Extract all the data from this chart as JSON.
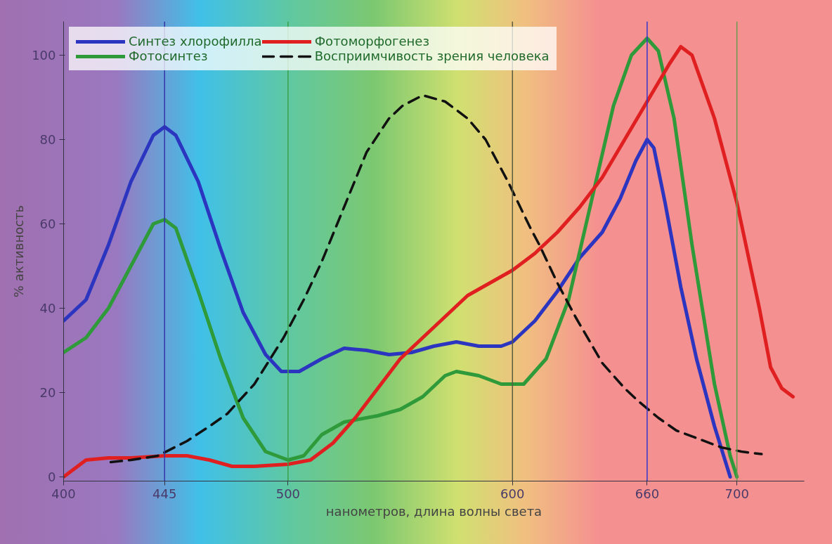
{
  "chart_data": {
    "type": "line",
    "xlabel": "нанометров, длина волны света",
    "ylabel": "% активность",
    "xlim": [
      400,
      730
    ],
    "xticks": [
      400,
      445,
      500,
      600,
      660,
      700
    ],
    "ylim": [
      -1,
      108
    ],
    "yticks": [
      0,
      20,
      40,
      60,
      80,
      100
    ],
    "grid": false,
    "legend": "top left",
    "marker": "none",
    "ref_lines": [
      {
        "axis": "x",
        "value": 445,
        "label": null,
        "color": "#3535a8"
      },
      {
        "axis": "x",
        "value": 500,
        "label": null,
        "color": "#3aa04a"
      },
      {
        "axis": "x",
        "value": 600,
        "label": null,
        "color": "#5a5a40"
      },
      {
        "axis": "x",
        "value": 660,
        "label": null,
        "color": "#3535c8"
      },
      {
        "axis": "x",
        "value": 700,
        "label": null,
        "color": "#6a9a50"
      }
    ],
    "series": [
      {
        "name": "Синтез хлорофилла",
        "color": "#2b35c0",
        "line_style": "solid",
        "x": [
          400,
          410,
          420,
          430,
          440,
          445,
          450,
          460,
          470,
          480,
          490,
          497,
          505,
          515,
          525,
          535,
          545,
          555,
          565,
          575,
          585,
          595,
          600,
          610,
          620,
          630,
          640,
          648,
          655,
          660,
          663,
          668,
          675,
          682,
          690,
          697
        ],
        "values": [
          37,
          42,
          55,
          70,
          81,
          83,
          81,
          70,
          54,
          39,
          29,
          25,
          25,
          28,
          30.5,
          30,
          29,
          29.5,
          31,
          32,
          31,
          31,
          32,
          37,
          44,
          52,
          58,
          66,
          75,
          80,
          78,
          65,
          45,
          28,
          12,
          0
        ]
      },
      {
        "name": "Фотосинтез",
        "color": "#2e9a3a",
        "line_style": "solid",
        "x": [
          400,
          410,
          420,
          430,
          440,
          445,
          450,
          460,
          470,
          480,
          490,
          500,
          507,
          515,
          525,
          540,
          550,
          560,
          570,
          575,
          585,
          595,
          605,
          615,
          625,
          635,
          645,
          653,
          660,
          665,
          672,
          680,
          690,
          697,
          700
        ],
        "values": [
          29.5,
          33,
          40,
          50,
          60,
          61,
          59,
          44,
          28,
          14,
          6,
          4,
          5,
          10,
          13,
          14.5,
          16,
          19,
          24,
          25,
          24,
          22,
          22,
          28,
          42,
          65,
          88,
          100,
          104,
          101,
          85,
          55,
          22,
          5,
          0
        ]
      },
      {
        "name": "Фотоморфогенез",
        "color": "#e02020",
        "line_style": "solid",
        "x": [
          400,
          405,
          410,
          420,
          430,
          445,
          455,
          465,
          475,
          485,
          500,
          510,
          520,
          530,
          540,
          550,
          560,
          570,
          580,
          590,
          600,
          610,
          620,
          630,
          640,
          650,
          660,
          670,
          675,
          680,
          690,
          700,
          710,
          715,
          720,
          725
        ],
        "values": [
          0,
          2,
          4,
          4.5,
          4.5,
          5,
          5,
          4,
          2.5,
          2.5,
          3,
          4,
          8,
          14,
          21,
          28,
          33,
          38,
          43,
          46,
          49,
          53,
          58,
          64,
          71,
          80,
          89,
          98,
          102,
          100,
          85,
          65,
          40,
          26,
          21,
          19
        ]
      },
      {
        "name": "Восприимчивость зрения человека",
        "color": "#111111",
        "line_style": "dashed",
        "x": [
          421,
          430,
          442,
          455,
          465,
          473,
          485,
          498,
          507,
          515,
          525,
          535,
          545,
          551,
          560,
          570,
          580,
          588,
          598,
          608,
          612,
          620,
          628,
          640,
          650,
          656,
          665,
          673,
          683,
          693,
          702,
          711
        ],
        "values": [
          3.5,
          4,
          5,
          8.5,
          12,
          15,
          22,
          33,
          42,
          51,
          64,
          77,
          85,
          88,
          90.5,
          89,
          85,
          80,
          70,
          59,
          55,
          46,
          38,
          27,
          21,
          18,
          14,
          11,
          9,
          7,
          6,
          5.4
        ]
      }
    ]
  }
}
